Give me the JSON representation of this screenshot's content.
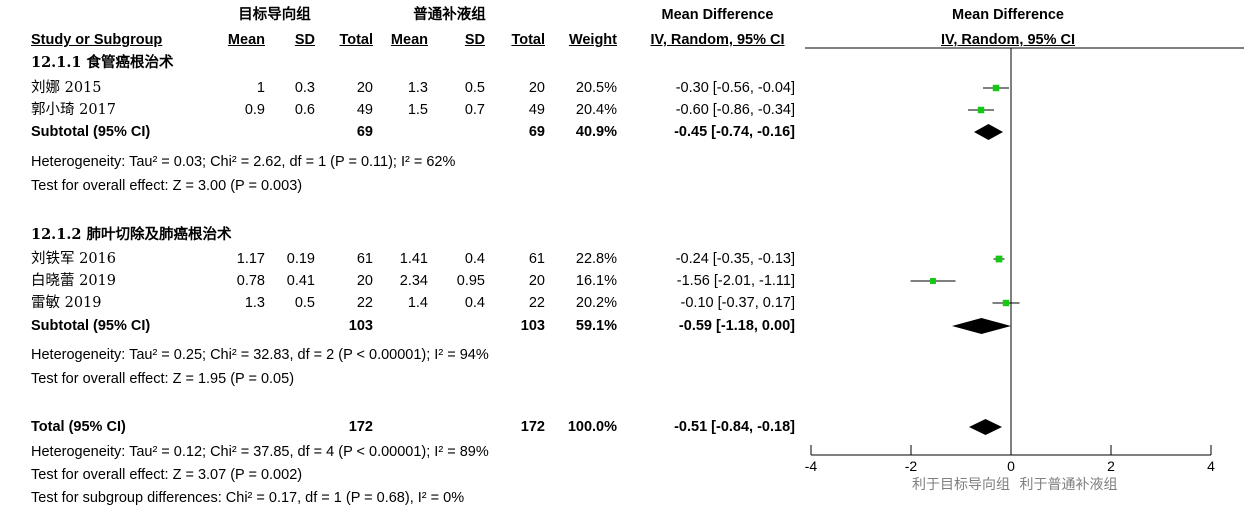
{
  "header": {
    "group1_label": "目标导向组",
    "group2_label": "普通补液组",
    "study_col": "Study or Subgroup",
    "mean": "Mean",
    "sd": "SD",
    "total": "Total",
    "weight": "Weight",
    "md_title": "Mean Difference",
    "md_method": "IV, Random, 95% CI",
    "plot_title": "Mean Difference",
    "plot_method": "IV, Random, 95% CI"
  },
  "subgroups": [
    {
      "title": "12.1.1 食管癌根治术",
      "studies": [
        {
          "name": "刘娜 2015",
          "m1": "1",
          "sd1": "0.3",
          "n1": "20",
          "m2": "1.3",
          "sd2": "0.5",
          "n2": "20",
          "weight": "20.5%",
          "ci_text": "-0.30 [-0.56, -0.04]"
        },
        {
          "name": "郭小琦 2017",
          "m1": "0.9",
          "sd1": "0.6",
          "n1": "49",
          "m2": "1.5",
          "sd2": "0.7",
          "n2": "49",
          "weight": "20.4%",
          "ci_text": "-0.60 [-0.86, -0.34]"
        }
      ],
      "subtotal": {
        "label": "Subtotal (95% CI)",
        "n1": "69",
        "n2": "69",
        "weight": "40.9%",
        "ci_text": "-0.45 [-0.74, -0.16]"
      },
      "heterogeneity": "Heterogeneity: Tau² = 0.03; Chi² = 2.62, df = 1 (P = 0.11); I² = 62%",
      "overall": "Test for overall effect: Z = 3.00 (P = 0.003)"
    },
    {
      "title": "12.1.2 肺叶切除及肺癌根治术",
      "studies": [
        {
          "name": "刘铁军 2016",
          "m1": "1.17",
          "sd1": "0.19",
          "n1": "61",
          "m2": "1.41",
          "sd2": "0.4",
          "n2": "61",
          "weight": "22.8%",
          "ci_text": "-0.24 [-0.35, -0.13]"
        },
        {
          "name": "白晓蕾 2019",
          "m1": "0.78",
          "sd1": "0.41",
          "n1": "20",
          "m2": "2.34",
          "sd2": "0.95",
          "n2": "20",
          "weight": "16.1%",
          "ci_text": "-1.56 [-2.01, -1.11]"
        },
        {
          "name": "雷敏 2019",
          "m1": "1.3",
          "sd1": "0.5",
          "n1": "22",
          "m2": "1.4",
          "sd2": "0.4",
          "n2": "22",
          "weight": "20.2%",
          "ci_text": "-0.10 [-0.37, 0.17]"
        }
      ],
      "subtotal": {
        "label": "Subtotal (95% CI)",
        "n1": "103",
        "n2": "103",
        "weight": "59.1%",
        "ci_text": "-0.59 [-1.18, 0.00]"
      },
      "heterogeneity": "Heterogeneity: Tau² = 0.25; Chi² = 32.83, df = 2 (P < 0.00001); I² = 94%",
      "overall": "Test for overall effect: Z = 1.95 (P = 0.05)"
    }
  ],
  "total": {
    "label": "Total (95% CI)",
    "n1": "172",
    "n2": "172",
    "weight": "100.0%",
    "ci_text": "-0.51 [-0.84, -0.18]"
  },
  "total_heterogeneity": "Heterogeneity: Tau² = 0.12; Chi² = 37.85, df = 4 (P < 0.00001); I² = 89%",
  "total_overall": "Test for overall effect: Z = 3.07 (P = 0.002)",
  "subgroup_diff": "Test for subgroup differences: Chi² = 0.17, df = 1 (P = 0.68), I² = 0%",
  "axis": {
    "ticks": [
      "-4",
      "-2",
      "0",
      "2",
      "4"
    ],
    "favours_left": "利于目标导向组",
    "favours_right": "利于普通补液组"
  },
  "colors": {
    "study_marker": "#14c814",
    "diamond": "#000000",
    "axis": "#000000"
  },
  "chart_data": {
    "type": "forest",
    "xlim": [
      -4,
      4
    ],
    "studies": [
      {
        "name": "刘娜 2015",
        "md": -0.3,
        "lo": -0.56,
        "hi": -0.04,
        "weight": 20.5
      },
      {
        "name": "郭小琦 2017",
        "md": -0.6,
        "lo": -0.86,
        "hi": -0.34,
        "weight": 20.4
      },
      {
        "name": "刘铁军 2016",
        "md": -0.24,
        "lo": -0.35,
        "hi": -0.13,
        "weight": 22.8
      },
      {
        "name": "白晓蕾 2019",
        "md": -1.56,
        "lo": -2.01,
        "hi": -1.11,
        "weight": 16.1
      },
      {
        "name": "雷敏 2019",
        "md": -0.1,
        "lo": -0.37,
        "hi": 0.17,
        "weight": 20.2
      }
    ],
    "pooled": [
      {
        "name": "Subtotal 12.1.1",
        "md": -0.45,
        "lo": -0.74,
        "hi": -0.16
      },
      {
        "name": "Subtotal 12.1.2",
        "md": -0.59,
        "lo": -1.18,
        "hi": 0.0
      },
      {
        "name": "Total",
        "md": -0.51,
        "lo": -0.84,
        "hi": -0.18
      }
    ]
  }
}
